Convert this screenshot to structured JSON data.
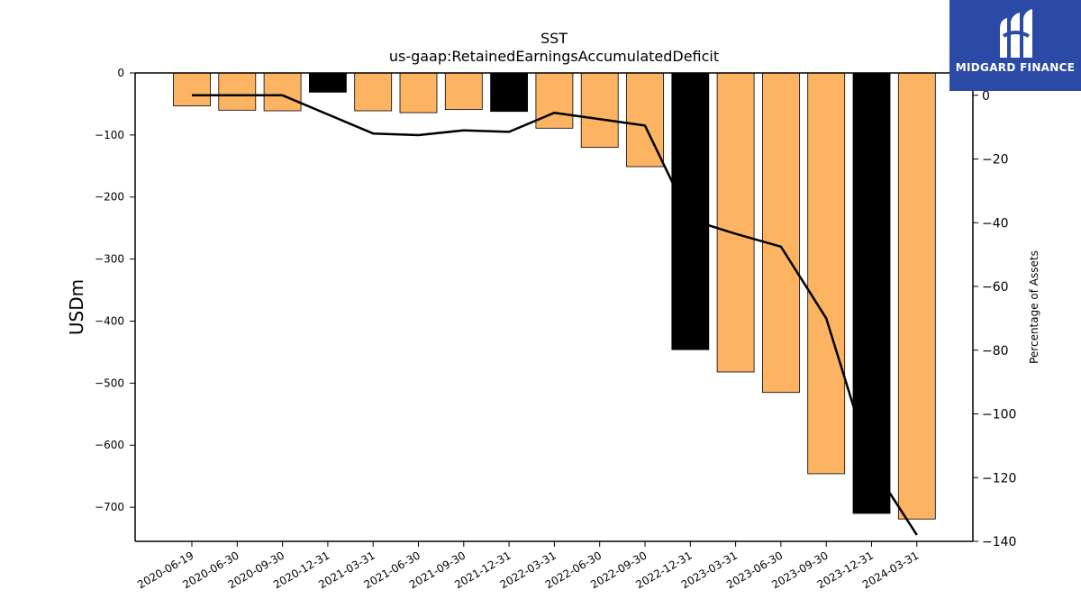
{
  "logo": {
    "text": "MIDGARD FINANCE",
    "background": "#2b4aa6"
  },
  "chart_data": {
    "type": "bar",
    "title": "SST",
    "subtitle": "us-gaap:RetainedEarningsAccumulatedDeficit",
    "ylabel": "USDm",
    "y2label": "Percentage of Assets",
    "ylim": [
      -755,
      0
    ],
    "y2lim": [
      -140,
      7
    ],
    "yticks": [
      0,
      -100,
      -200,
      -300,
      -400,
      -500,
      -600,
      -700
    ],
    "y2ticks": [
      0,
      -20,
      -40,
      -60,
      -80,
      -100,
      -120,
      -140
    ],
    "grid": false,
    "colors": {
      "quarter": "#fdb462",
      "year_end": "#000000",
      "line": "#000000",
      "edge": "#000000"
    },
    "categories": [
      "2020-06-19",
      "2020-06-30",
      "2020-09-30",
      "2020-12-31",
      "2021-03-31",
      "2021-06-30",
      "2021-09-30",
      "2021-12-31",
      "2022-03-31",
      "2022-06-30",
      "2022-09-30",
      "2022-12-31",
      "2023-03-31",
      "2023-06-30",
      "2023-09-30",
      "2023-12-31",
      "2024-03-31"
    ],
    "series": [
      {
        "type": "bar",
        "values": [
          -53,
          -60,
          -61,
          -31,
          -61,
          -64,
          -59,
          -62,
          -89,
          -120,
          -151,
          -446,
          -482,
          -515,
          -646,
          -710,
          -719
        ],
        "year_end": [
          false,
          false,
          false,
          true,
          false,
          false,
          false,
          true,
          false,
          false,
          false,
          true,
          false,
          false,
          false,
          true,
          false
        ]
      },
      {
        "type": "line",
        "axis": "secondary",
        "values": [
          0,
          0,
          0,
          -6,
          -12,
          -12.5,
          -11,
          -11.5,
          -5.5,
          -7.5,
          -9.5,
          -39,
          -43.5,
          -47.5,
          -70,
          -116,
          -138
        ]
      }
    ]
  }
}
